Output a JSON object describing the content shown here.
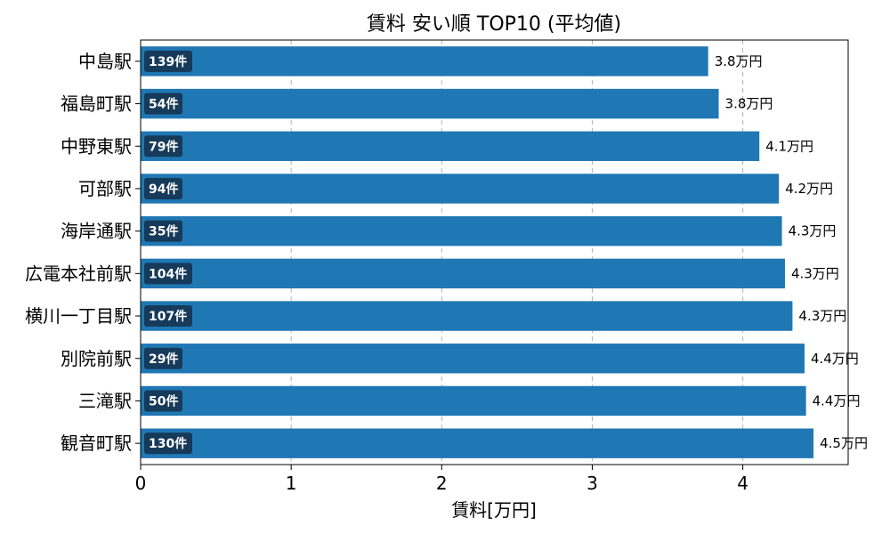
{
  "chart_data": {
    "type": "bar",
    "orientation": "horizontal",
    "title": "賃料 安い順 TOP10 (平均値)",
    "xlabel": "賃料[万円]",
    "ylabel": "",
    "xlim": [
      0,
      4.7
    ],
    "xticks": [
      0,
      1,
      2,
      3,
      4
    ],
    "grid": "x-dashed",
    "bar_color": "#1f77b4",
    "count_badge_color": "#163a5a",
    "categories": [
      "中島駅",
      "福島町駅",
      "中野東駅",
      "可部駅",
      "海岸通駅",
      "広電本社前駅",
      "横川一丁目駅",
      "別院前駅",
      "三滝駅",
      "観音町駅"
    ],
    "values": [
      3.77,
      3.84,
      4.11,
      4.24,
      4.26,
      4.28,
      4.33,
      4.41,
      4.42,
      4.47
    ],
    "value_labels": [
      "3.8万円",
      "3.8万円",
      "4.1万円",
      "4.2万円",
      "4.3万円",
      "4.3万円",
      "4.3万円",
      "4.4万円",
      "4.4万円",
      "4.5万円"
    ],
    "count_labels": [
      "139件",
      "54件",
      "79件",
      "94件",
      "35件",
      "104件",
      "107件",
      "29件",
      "50件",
      "130件"
    ]
  }
}
